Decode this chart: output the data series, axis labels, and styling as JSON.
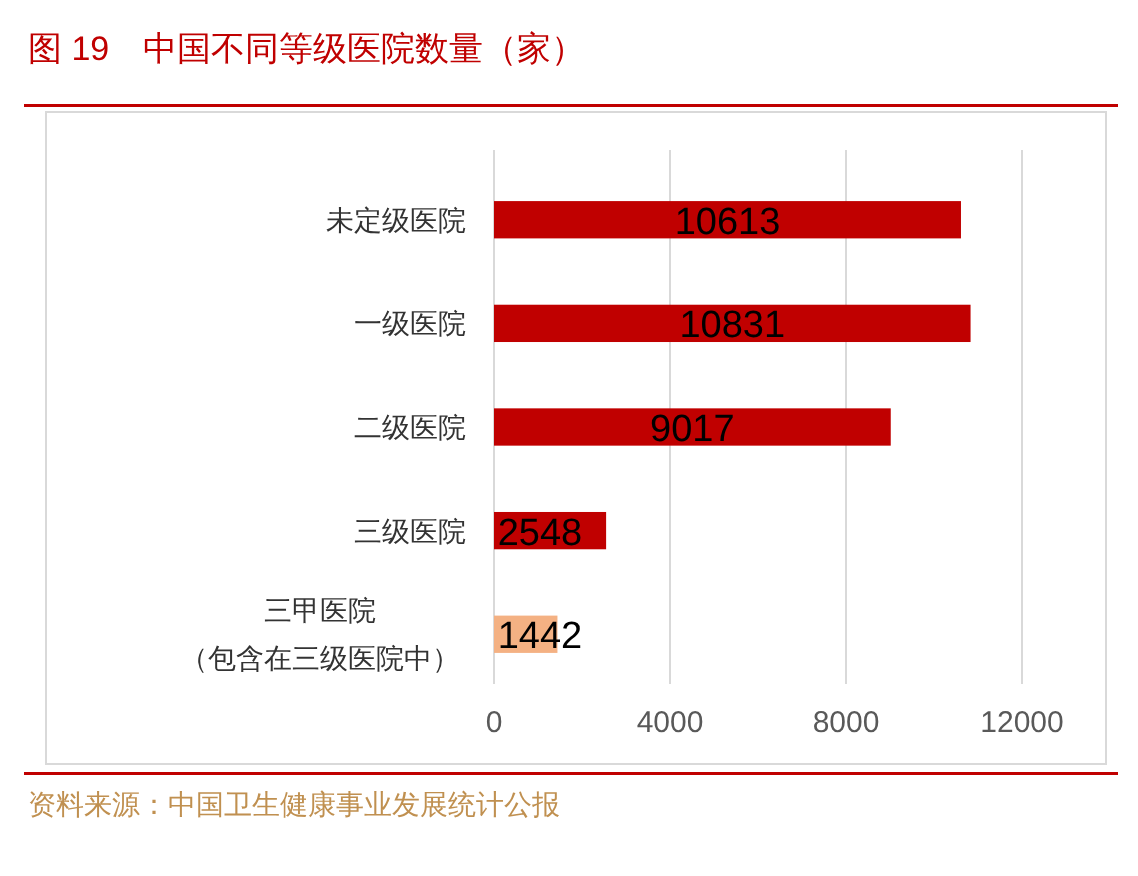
{
  "chart_data": {
    "type": "bar",
    "orientation": "horizontal",
    "title": "图 19　中国不同等级医院数量（家）",
    "categories": [
      "未定级医院",
      "一级医院",
      "二级医院",
      "三级医院",
      "三甲医院（包含在三级医院中）"
    ],
    "values": [
      10613,
      10831,
      9017,
      2548,
      1442
    ],
    "colors": [
      "#c00000",
      "#c00000",
      "#c00000",
      "#c00000",
      "#f4b183"
    ],
    "xlim": [
      0,
      12000
    ],
    "xticks": [
      0,
      4000,
      8000,
      12000
    ],
    "grid": "x",
    "data_labels": true,
    "annotations": [
      "资料来源：中国卫生健康事业发展统计公报"
    ]
  }
}
